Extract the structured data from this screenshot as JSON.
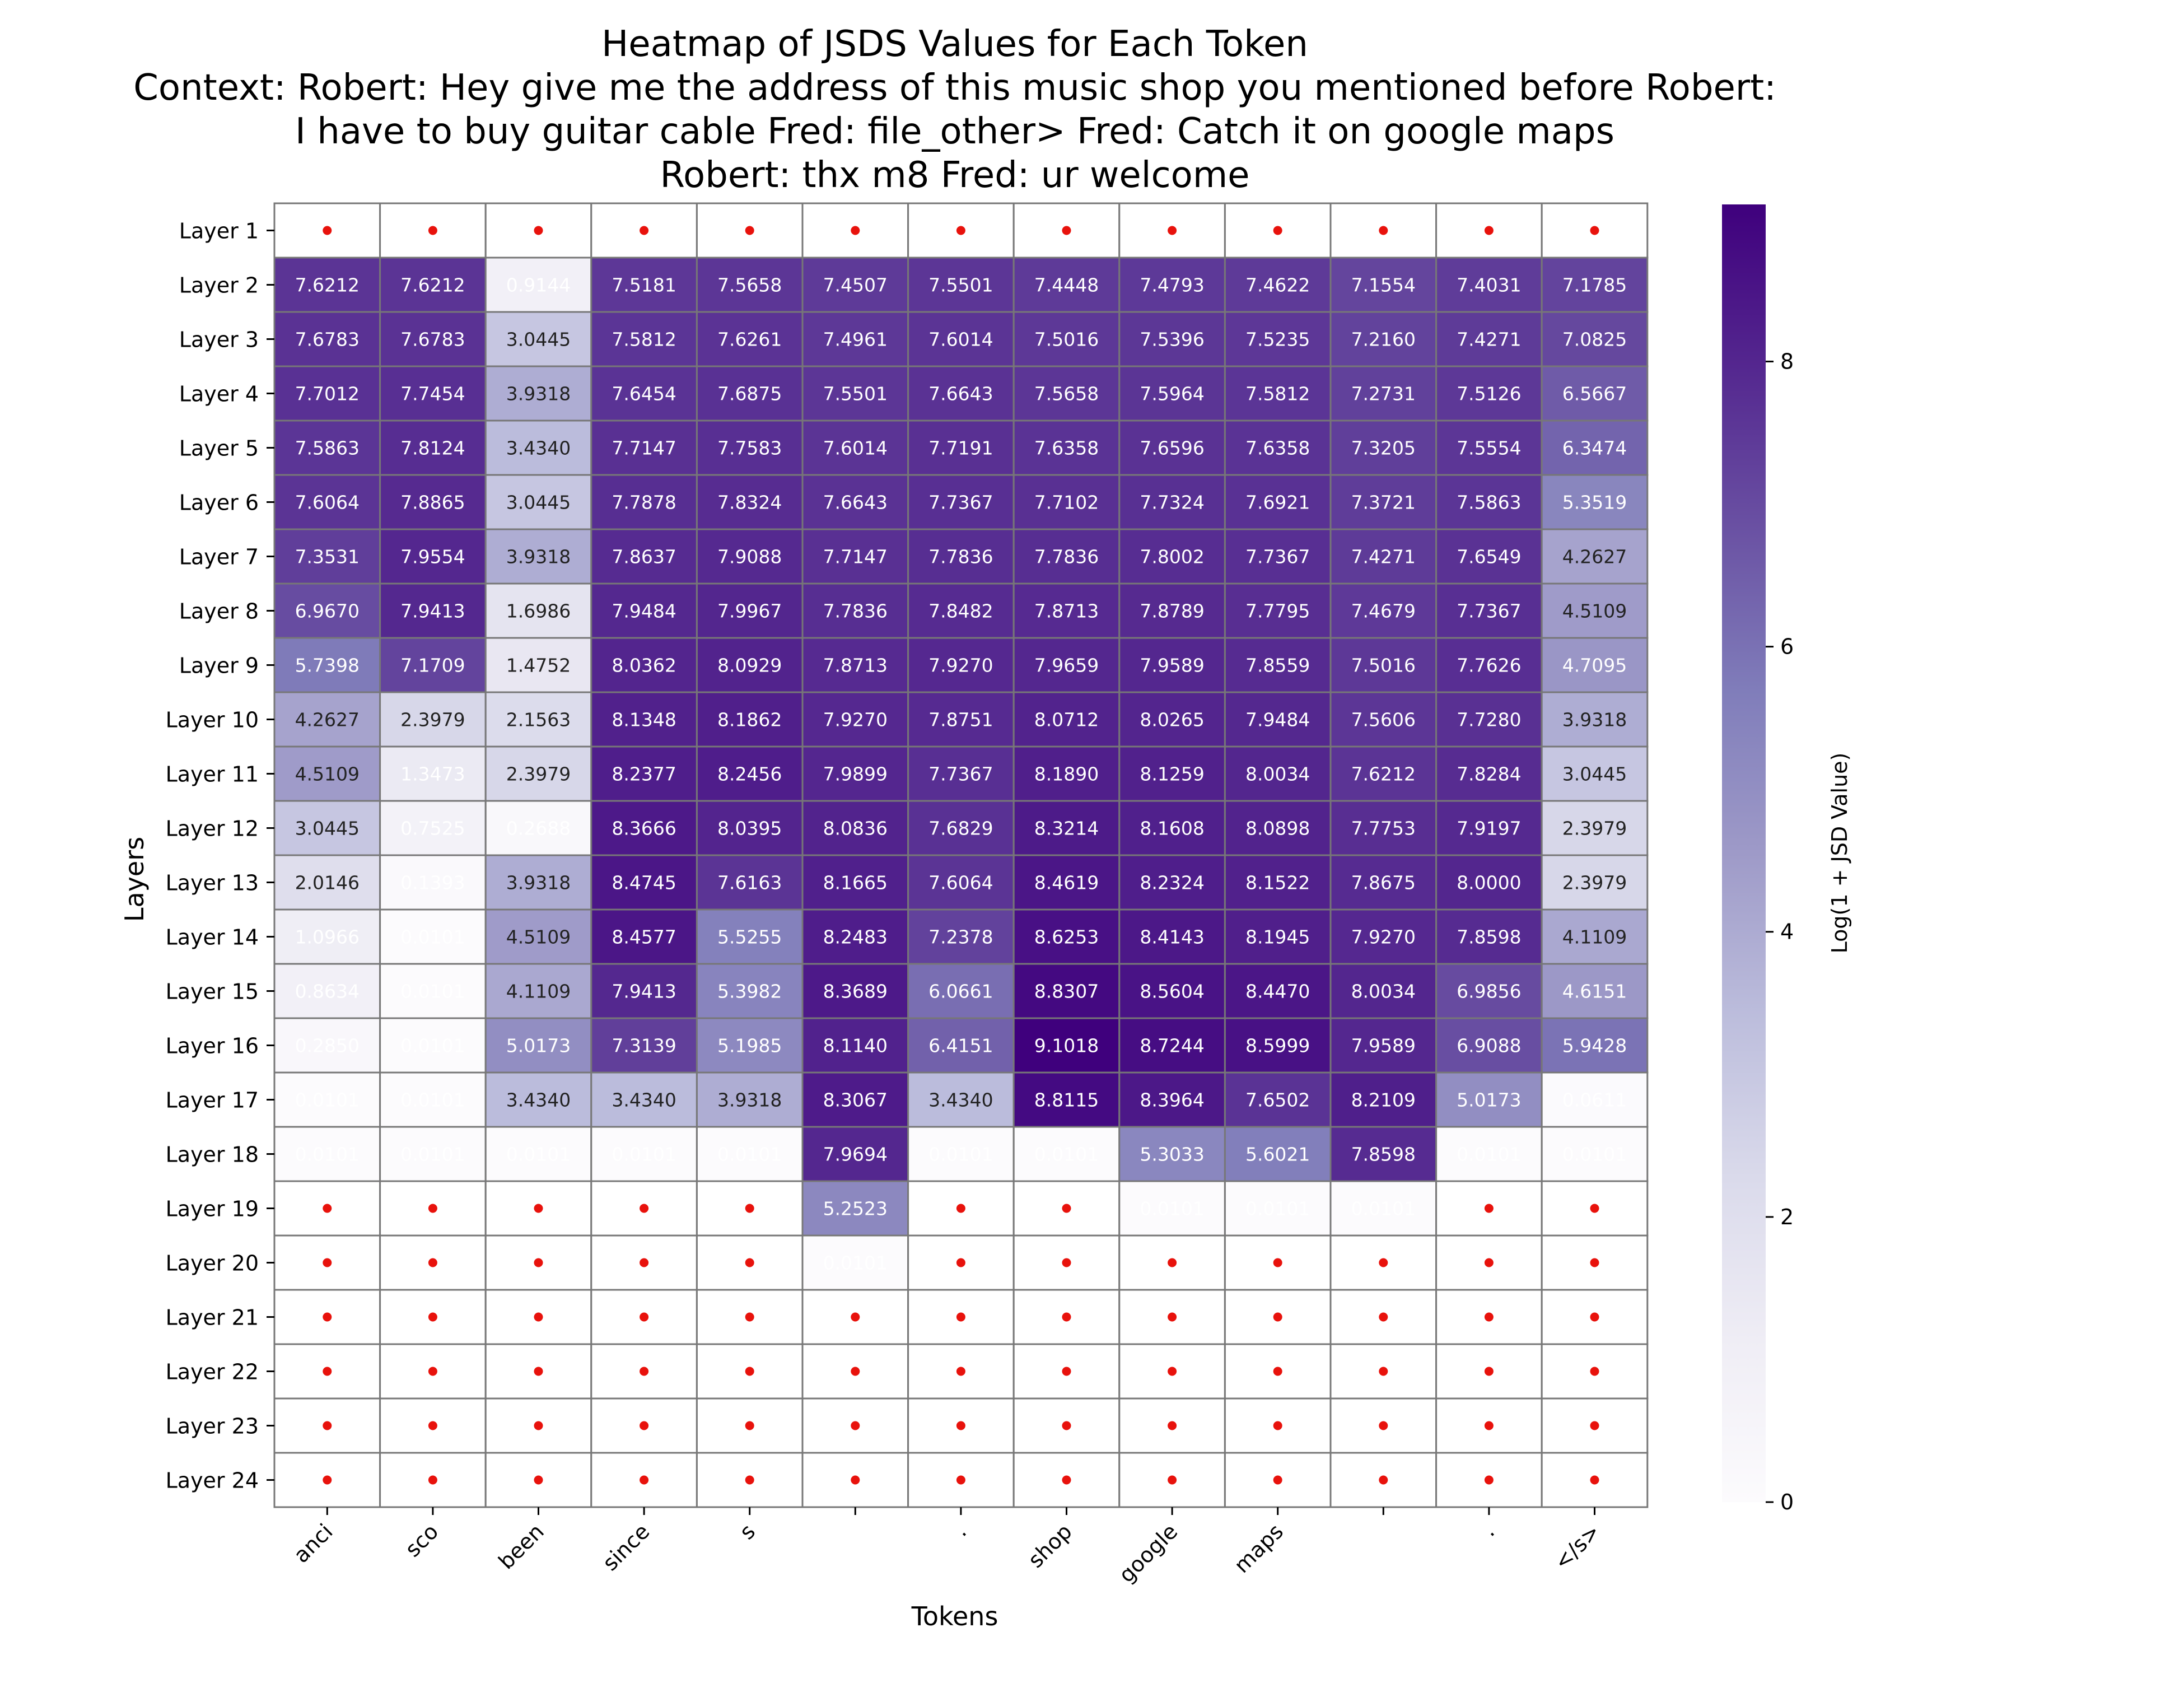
{
  "chart_data": {
    "type": "heatmap",
    "title_lines": [
      "Heatmap of JSDS Values for Each Token",
      "Context: Robert: Hey give me the address of this music shop you mentioned before Robert:",
      "I have to buy guitar cable Fred: file_other> Fred: Catch it on google maps",
      "Robert: thx m8 Fred: ur welcome"
    ],
    "xlabel": "Tokens",
    "ylabel": "Layers",
    "colorbar_label": "Log(1 + JSD Value)",
    "colorbar_ticks": [
      0,
      2,
      4,
      6,
      8
    ],
    "color_range": [
      0,
      9.1018
    ],
    "colormap": "Purples",
    "missing_marker_color": "#e8120c",
    "x_tokens": [
      "anci",
      "sco",
      "been",
      "since",
      "s",
      "",
      ".",
      "shop",
      "google",
      "maps",
      "",
      ".",
      "</s>"
    ],
    "y_layers": [
      "Layer 1",
      "Layer 2",
      "Layer 3",
      "Layer 4",
      "Layer 5",
      "Layer 6",
      "Layer 7",
      "Layer 8",
      "Layer 9",
      "Layer 10",
      "Layer 11",
      "Layer 12",
      "Layer 13",
      "Layer 14",
      "Layer 15",
      "Layer 16",
      "Layer 17",
      "Layer 18",
      "Layer 19",
      "Layer 20",
      "Layer 21",
      "Layer 22",
      "Layer 23",
      "Layer 24"
    ],
    "values": [
      [
        null,
        null,
        null,
        null,
        null,
        null,
        null,
        null,
        null,
        null,
        null,
        null,
        null
      ],
      [
        7.6212,
        7.6212,
        0.9144,
        7.5181,
        7.5658,
        7.4507,
        7.5501,
        7.4448,
        7.4793,
        7.4622,
        7.1554,
        7.4031,
        7.1785
      ],
      [
        7.6783,
        7.6783,
        3.0445,
        7.5812,
        7.6261,
        7.4961,
        7.6014,
        7.5016,
        7.5396,
        7.5235,
        7.216,
        7.4271,
        7.0825
      ],
      [
        7.7012,
        7.7454,
        3.9318,
        7.6454,
        7.6875,
        7.5501,
        7.6643,
        7.5658,
        7.5964,
        7.5812,
        7.2731,
        7.5126,
        6.5667
      ],
      [
        7.5863,
        7.8124,
        3.434,
        7.7147,
        7.7583,
        7.6014,
        7.7191,
        7.6358,
        7.6596,
        7.6358,
        7.3205,
        7.5554,
        6.3474
      ],
      [
        7.6064,
        7.8865,
        3.0445,
        7.7878,
        7.8324,
        7.6643,
        7.7367,
        7.7102,
        7.7324,
        7.6921,
        7.3721,
        7.5863,
        5.3519
      ],
      [
        7.3531,
        7.9554,
        3.9318,
        7.8637,
        7.9088,
        7.7147,
        7.7836,
        7.7836,
        7.8002,
        7.7367,
        7.4271,
        7.6549,
        4.2627
      ],
      [
        6.967,
        7.9413,
        1.6986,
        7.9484,
        7.9967,
        7.7836,
        7.8482,
        7.8713,
        7.8789,
        7.7795,
        7.4679,
        7.7367,
        4.5109
      ],
      [
        5.7398,
        7.1709,
        1.4752,
        8.0362,
        8.0929,
        7.8713,
        7.927,
        7.9659,
        7.9589,
        7.8559,
        7.5016,
        7.7626,
        4.7095
      ],
      [
        4.2627,
        2.3979,
        2.1563,
        8.1348,
        8.1862,
        7.927,
        7.8751,
        8.0712,
        8.0265,
        7.9484,
        7.5606,
        7.728,
        3.9318
      ],
      [
        4.5109,
        1.3473,
        2.3979,
        8.2377,
        8.2456,
        7.9899,
        7.7367,
        8.189,
        8.1259,
        8.0034,
        7.6212,
        7.8284,
        3.0445
      ],
      [
        3.0445,
        0.7525,
        0.2688,
        8.3666,
        8.0395,
        8.0836,
        7.6829,
        8.3214,
        8.1608,
        8.0898,
        7.7753,
        7.9197,
        2.3979
      ],
      [
        2.0146,
        0.1393,
        3.9318,
        8.4745,
        7.6163,
        8.1665,
        7.6064,
        8.4619,
        8.2324,
        8.1522,
        7.8675,
        8.0,
        2.3979
      ],
      [
        1.0966,
        0.0101,
        4.5109,
        8.4577,
        5.5255,
        8.2483,
        7.2378,
        8.6253,
        8.4143,
        8.1945,
        7.927,
        7.8598,
        4.1109
      ],
      [
        0.8634,
        0.0101,
        4.1109,
        7.9413,
        5.3982,
        8.3689,
        6.0661,
        8.8307,
        8.5604,
        8.447,
        8.0034,
        6.9856,
        4.6151
      ],
      [
        0.285,
        0.0101,
        5.0173,
        7.3139,
        5.1985,
        8.114,
        6.4151,
        9.1018,
        8.7244,
        8.5999,
        7.9589,
        6.9088,
        5.9428
      ],
      [
        0.0101,
        0.0101,
        3.434,
        3.434,
        3.9318,
        8.3067,
        3.434,
        8.8115,
        8.3964,
        7.6502,
        8.2109,
        5.0173,
        0.0611
      ],
      [
        0.0101,
        0.0101,
        0.0101,
        0.0101,
        0.0101,
        7.9694,
        0.0101,
        0.0101,
        5.3033,
        5.6021,
        7.8598,
        0.0101,
        0.0101
      ],
      [
        null,
        null,
        null,
        null,
        null,
        5.2523,
        null,
        null,
        0.0101,
        0.0101,
        0.0101,
        null,
        null
      ],
      [
        null,
        null,
        null,
        null,
        null,
        0.0101,
        null,
        null,
        null,
        null,
        null,
        null,
        null
      ],
      [
        null,
        null,
        null,
        null,
        null,
        null,
        null,
        null,
        null,
        null,
        null,
        null,
        null
      ],
      [
        null,
        null,
        null,
        null,
        null,
        null,
        null,
        null,
        null,
        null,
        null,
        null,
        null
      ],
      [
        null,
        null,
        null,
        null,
        null,
        null,
        null,
        null,
        null,
        null,
        null,
        null,
        null
      ],
      [
        null,
        null,
        null,
        null,
        null,
        null,
        null,
        null,
        null,
        null,
        null,
        null,
        null
      ]
    ]
  }
}
